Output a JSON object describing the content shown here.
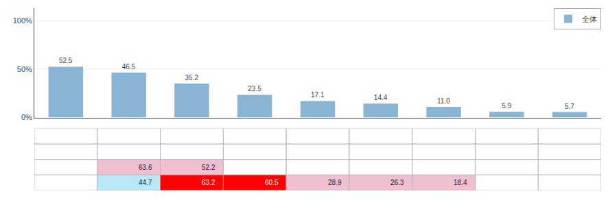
{
  "chart_data": [
    {
      "type": "bar",
      "categories": [
        null,
        null,
        null,
        null,
        null,
        null,
        null,
        null,
        null
      ],
      "series": [
        {
          "name": "全体",
          "color": "#8ab4d4",
          "values": [
            52.5,
            46.5,
            35.2,
            23.5,
            17.1,
            14.4,
            11.0,
            5.9,
            5.7
          ],
          "value_labels": [
            "52.5",
            "46.5",
            "35.2",
            "23.5",
            "17.1",
            "14.4",
            "11.0",
            "5.9",
            "5.7"
          ]
        }
      ],
      "ylim": [
        0,
        113
      ],
      "yticks": [
        {
          "value": 0,
          "label": "0%"
        },
        {
          "value": 50,
          "label": "50%"
        },
        {
          "value": 100,
          "label": "100%"
        }
      ],
      "grid": true,
      "data_labels": true,
      "legend": "upper right",
      "tick_labels": "y"
    },
    {
      "type": "table",
      "rows": [
        [
          null,
          null,
          null,
          null,
          null,
          null,
          null,
          null,
          null
        ],
        [
          null,
          null,
          null,
          null,
          null,
          null,
          null,
          null,
          null
        ],
        [
          null,
          "63.6",
          "52.2",
          null,
          null,
          null,
          null,
          null,
          null
        ],
        [
          null,
          "44.7",
          "63.2",
          "60.5",
          "28.9",
          "26.3",
          "18.4",
          null,
          null
        ]
      ],
      "colors": [
        [
          null,
          null,
          null,
          null,
          null,
          null,
          null,
          null,
          null
        ],
        [
          null,
          null,
          null,
          null,
          null,
          null,
          null,
          null,
          null
        ],
        [
          null,
          "#f0c0d0",
          "#f0c0d0",
          null,
          null,
          null,
          null,
          null,
          null
        ],
        [
          null,
          "#b8e8f8",
          "#ff0000",
          "#ff0000",
          "#f0c0d0",
          "#f0c0d0",
          "#f0c0d0",
          null,
          null
        ]
      ]
    }
  ]
}
